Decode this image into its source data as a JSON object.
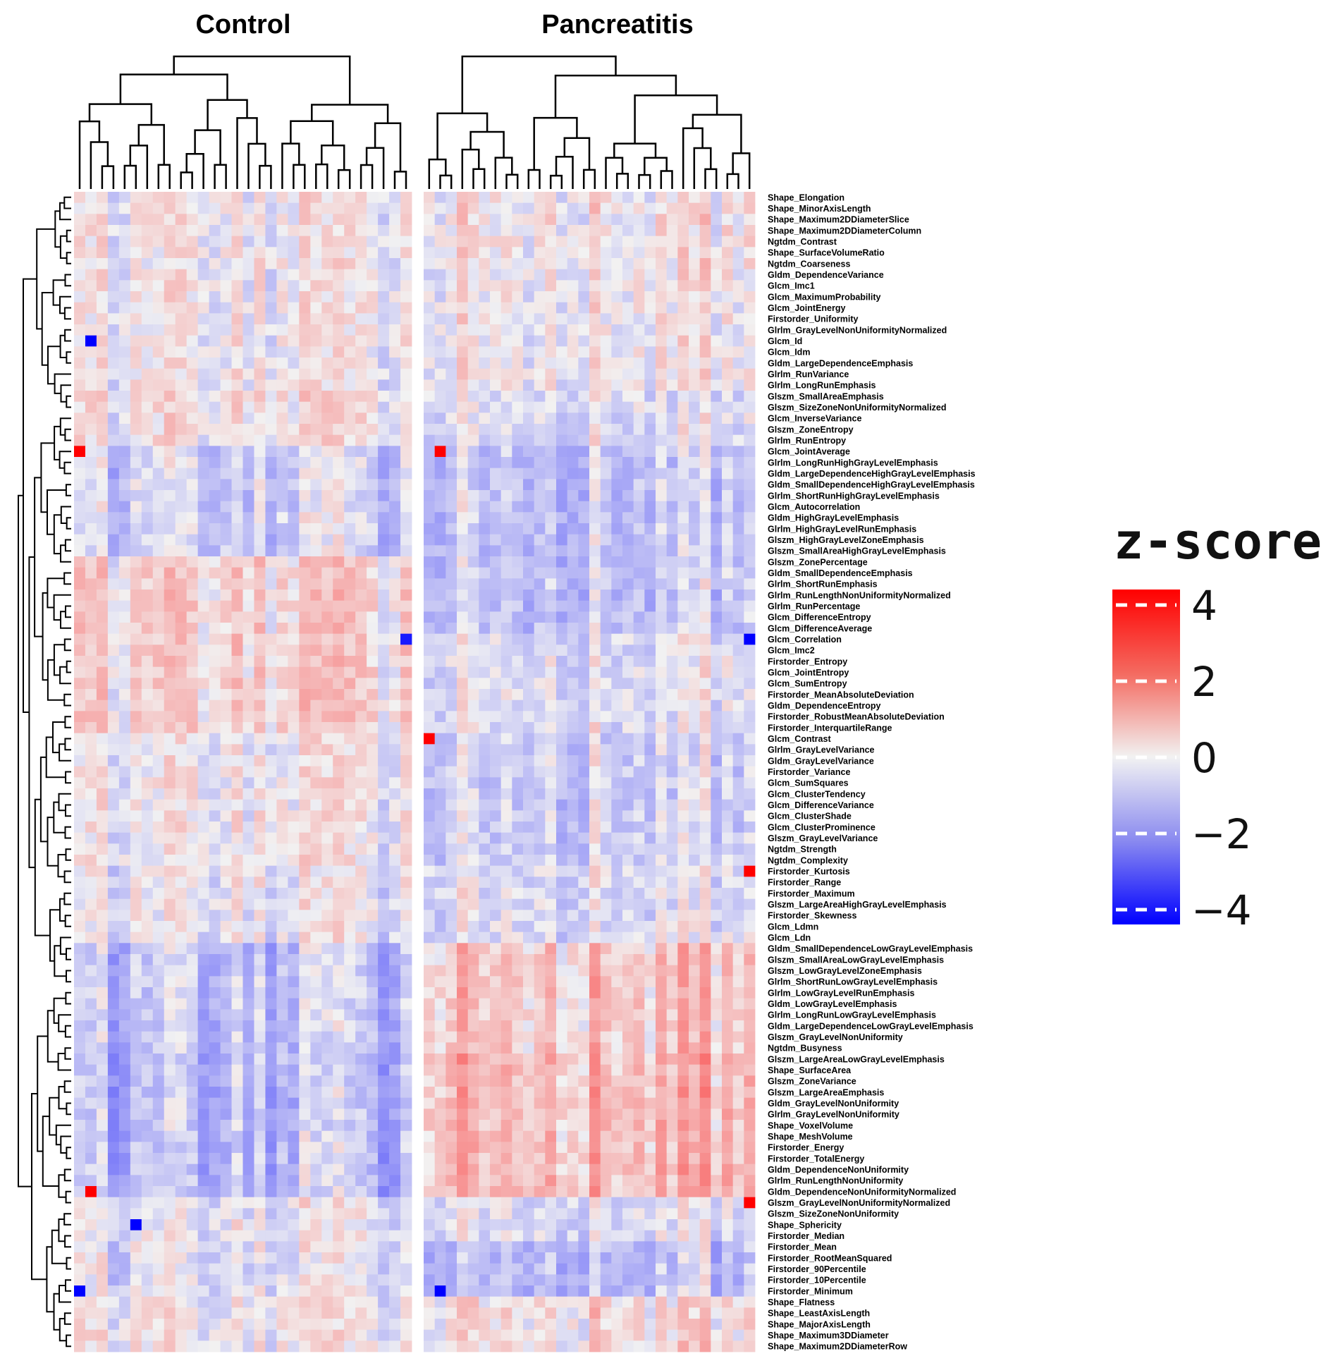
{
  "chart_data": {
    "type": "heatmap",
    "groups": [
      {
        "name": "Control",
        "n_samples": 30
      },
      {
        "name": "Pancreatitis",
        "n_samples": 30
      }
    ],
    "row_labels": [
      "Shape_Elongation",
      "Shape_MinorAxisLength",
      "Shape_Maximum2DDiameterSlice",
      "Shape_Maximum2DDiameterColumn",
      "Ngtdm_Contrast",
      "Shape_SurfaceVolumeRatio",
      "Ngtdm_Coarseness",
      "Gldm_DependenceVariance",
      "Glcm_Imc1",
      "Glcm_MaximumProbability",
      "Glcm_JointEnergy",
      "Firstorder_Uniformity",
      "Glrlm_GrayLevelNonUniformityNormalized",
      "Glcm_Id",
      "Glcm_Idm",
      "Gldm_LargeDependenceEmphasis",
      "Glrlm_RunVariance",
      "Glrlm_LongRunEmphasis",
      "Glszm_SmallAreaEmphasis",
      "Glszm_SizeZoneNonUniformityNormalized",
      "Glcm_InverseVariance",
      "Glszm_ZoneEntropy",
      "Glrlm_RunEntropy",
      "Glcm_JointAverage",
      "Glrlm_LongRunHighGrayLevelEmphasis",
      "Gldm_LargeDependenceHighGrayLevelEmphasis",
      "Gldm_SmallDependenceHighGrayLevelEmphasis",
      "Glrlm_ShortRunHighGrayLevelEmphasis",
      "Glcm_Autocorrelation",
      "Gldm_HighGrayLevelEmphasis",
      "Glrlm_HighGrayLevelRunEmphasis",
      "Glszm_HighGrayLevelZoneEmphasis",
      "Glszm_SmallAreaHighGrayLevelEmphasis",
      "Glszm_ZonePercentage",
      "Gldm_SmallDependenceEmphasis",
      "Glrlm_ShortRunEmphasis",
      "Glrlm_RunLengthNonUniformityNormalized",
      "Glrlm_RunPercentage",
      "Glcm_DifferenceEntropy",
      "Glcm_DifferenceAverage",
      "Glcm_Correlation",
      "Glcm_Imc2",
      "Firstorder_Entropy",
      "Glcm_JointEntropy",
      "Glcm_SumEntropy",
      "Firstorder_MeanAbsoluteDeviation",
      "Gldm_DependenceEntropy",
      "Firstorder_RobustMeanAbsoluteDeviation",
      "Firstorder_InterquartileRange",
      "Glcm_Contrast",
      "Glrlm_GrayLevelVariance",
      "Gldm_GrayLevelVariance",
      "Firstorder_Variance",
      "Glcm_SumSquares",
      "Glcm_ClusterTendency",
      "Glcm_DifferenceVariance",
      "Glcm_ClusterShade",
      "Glcm_ClusterProminence",
      "Glszm_GrayLevelVariance",
      "Ngtdm_Strength",
      "Ngtdm_Complexity",
      "Firstorder_Kurtosis",
      "Firstorder_Range",
      "Firstorder_Maximum",
      "Glszm_LargeAreaHighGrayLevelEmphasis",
      "Firstorder_Skewness",
      "Glcm_Ldmn",
      "Glcm_Ldn",
      "Gldm_SmallDependenceLowGrayLevelEmphasis",
      "Glszm_SmallAreaLowGrayLevelEmphasis",
      "Glszm_LowGrayLevelZoneEmphasis",
      "Glrlm_ShortRunLowGrayLevelEmphasis",
      "Glrlm_LowGrayLevelRunEmphasis",
      "Gldm_LowGrayLevelEmphasis",
      "Glrlm_LongRunLowGrayLevelEmphasis",
      "Gldm_LargeDependenceLowGrayLevelEmphasis",
      "Glszm_GrayLevelNonUniformity",
      "Ngtdm_Busyness",
      "Glszm_LargeAreaLowGrayLevelEmphasis",
      "Shape_SurfaceArea",
      "Glszm_ZoneVariance",
      "Glszm_LargeAreaEmphasis",
      "Gldm_GrayLevelNonUniformity",
      "Glrlm_GrayLevelNonUniformity",
      "Shape_VoxelVolume",
      "Shape_MeshVolume",
      "Firstorder_Energy",
      "Firstorder_TotalEnergy",
      "Gldm_DependenceNonUniformity",
      "Glrlm_RunLengthNonUniformity",
      "Gldm_DependenceNonUniformityNormalized",
      "Glszm_GrayLevelNonUniformityNormalized",
      "Glszm_SizeZoneNonUniformity",
      "Shape_Sphericity",
      "Firstorder_Median",
      "Firstorder_Mean",
      "Firstorder_RootMeanSquared",
      "Firstorder_90Percentile",
      "Firstorder_10Percentile",
      "Firstorder_Minimum",
      "Shape_Flatness",
      "Shape_LeastAxisLength",
      "Shape_MajorAxisLength",
      "Shape_Maximum3DDiameter",
      "Shape_Maximum2DDiameterRow"
    ],
    "row_clusters": [
      {
        "start": 0,
        "end": 6,
        "bias_control": 0.0,
        "bias_pancreatitis": 0.2
      },
      {
        "start": 7,
        "end": 17,
        "bias_control": 0.0,
        "bias_pancreatitis": 0.1
      },
      {
        "start": 18,
        "end": 22,
        "bias_control": 0.1,
        "bias_pancreatitis": -0.1
      },
      {
        "start": 23,
        "end": 32,
        "bias_control": -0.4,
        "bias_pancreatitis": -0.4
      },
      {
        "start": 33,
        "end": 39,
        "bias_control": 0.3,
        "bias_pancreatitis": -0.4
      },
      {
        "start": 40,
        "end": 48,
        "bias_control": 0.3,
        "bias_pancreatitis": -0.1
      },
      {
        "start": 49,
        "end": 60,
        "bias_control": 0.0,
        "bias_pancreatitis": -0.3
      },
      {
        "start": 61,
        "end": 67,
        "bias_control": -0.1,
        "bias_pancreatitis": -0.1
      },
      {
        "start": 68,
        "end": 77,
        "bias_control": -0.6,
        "bias_pancreatitis": 0.6
      },
      {
        "start": 78,
        "end": 90,
        "bias_control": -0.7,
        "bias_pancreatitis": 0.8
      },
      {
        "start": 91,
        "end": 94,
        "bias_control": -0.1,
        "bias_pancreatitis": -0.1
      },
      {
        "start": 95,
        "end": 99,
        "bias_control": -0.2,
        "bias_pancreatitis": -0.5
      },
      {
        "start": 100,
        "end": 105,
        "bias_control": 0.0,
        "bias_pancreatitis": 0.3
      }
    ],
    "highlight_cells": [
      {
        "row": "Glcm_JointAverage",
        "group": "Control",
        "sample": 1,
        "z": 4
      },
      {
        "row": "Glcm_JointAverage",
        "group": "Pancreatitis",
        "sample": 2,
        "z": 4
      },
      {
        "row": "Glcm_Contrast",
        "group": "Pancreatitis",
        "sample": 1,
        "z": 4
      },
      {
        "row": "Firstorder_Kurtosis",
        "group": "Pancreatitis",
        "sample": 30,
        "z": 4
      },
      {
        "row": "Glszm_GrayLevelNonUniformityNormalized",
        "group": "Pancreatitis",
        "sample": 30,
        "z": 4
      },
      {
        "row": "Gldm_DependenceNonUniformityNormalized",
        "group": "Control",
        "sample": 2,
        "z": 4
      },
      {
        "row": "Glcm_Correlation",
        "group": "Pancreatitis",
        "sample": 30,
        "z": -4
      },
      {
        "row": "Glcm_Correlation",
        "group": "Control",
        "sample": 30,
        "z": -3.5
      },
      {
        "row": "Firstorder_Minimum",
        "group": "Control",
        "sample": 1,
        "z": -4
      },
      {
        "row": "Firstorder_Minimum",
        "group": "Pancreatitis",
        "sample": 2,
        "z": -4
      },
      {
        "row": "Glcm_Id",
        "group": "Control",
        "sample": 2,
        "z": -4
      },
      {
        "row": "Shape_Sphericity",
        "group": "Control",
        "sample": 6,
        "z": -4
      }
    ],
    "legend": {
      "title": "z-score",
      "ticks": [
        4,
        2,
        0,
        -2,
        -4
      ],
      "range": [
        -4,
        4
      ],
      "colors": {
        "low": "#0000ff",
        "mid": "#f2f2f2",
        "high": "#ff0000"
      }
    }
  }
}
